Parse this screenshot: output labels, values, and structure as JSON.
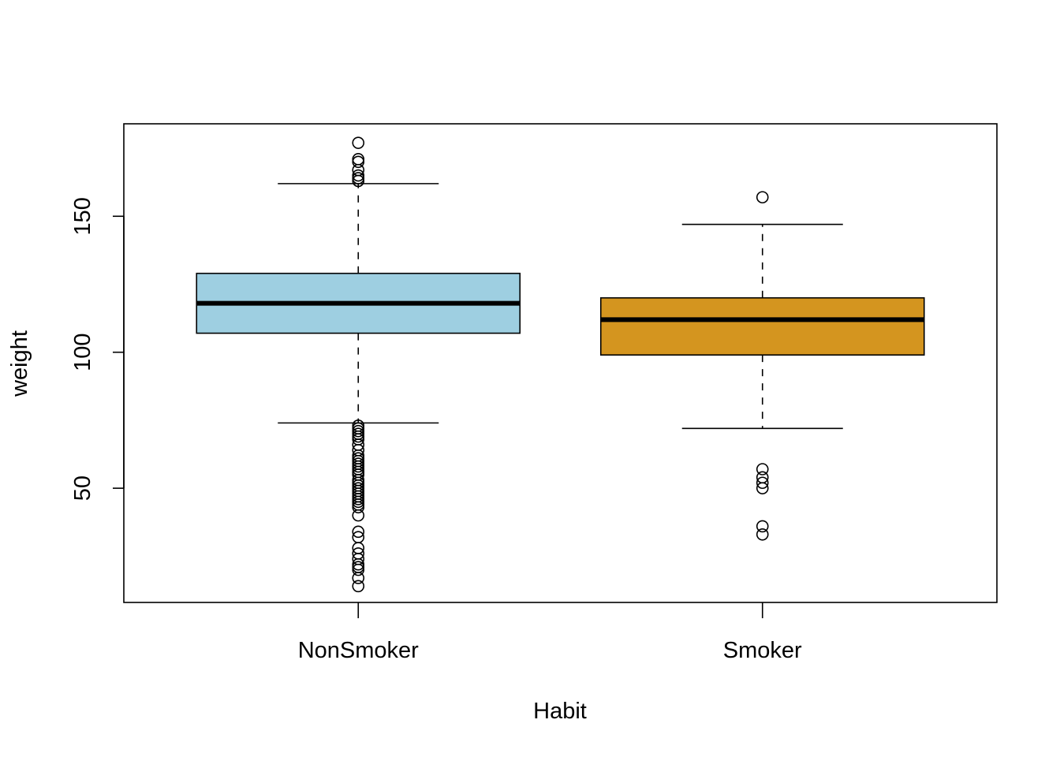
{
  "chart_data": {
    "type": "boxplot",
    "title": "",
    "xlabel": "Habit",
    "ylabel": "weight",
    "ylim": [
      8,
      184
    ],
    "yticks": [
      50,
      100,
      150
    ],
    "grid": false,
    "legend": "none",
    "categories": [
      "NonSmoker",
      "Smoker"
    ],
    "boxes": [
      {
        "category": "NonSmoker",
        "color": "#9ecfe1",
        "whisker_low": 74,
        "q1": 107,
        "median": 118,
        "q3": 129,
        "whisker_high": 162,
        "outliers": [
          177,
          171,
          170,
          167,
          165,
          164,
          163,
          73,
          72,
          71,
          70,
          69,
          68,
          66,
          64,
          62,
          61,
          60,
          59,
          58,
          57,
          56,
          55,
          53,
          52,
          51,
          50,
          49,
          48,
          47,
          46,
          45,
          44,
          43,
          40,
          34,
          32,
          28,
          26,
          24,
          22,
          21,
          20,
          17,
          14
        ]
      },
      {
        "category": "Smoker",
        "color": "#d4951f",
        "whisker_low": 72,
        "q1": 99,
        "median": 112,
        "q3": 120,
        "whisker_high": 147,
        "outliers": [
          157,
          57,
          54,
          52,
          50,
          36,
          33
        ]
      }
    ]
  }
}
